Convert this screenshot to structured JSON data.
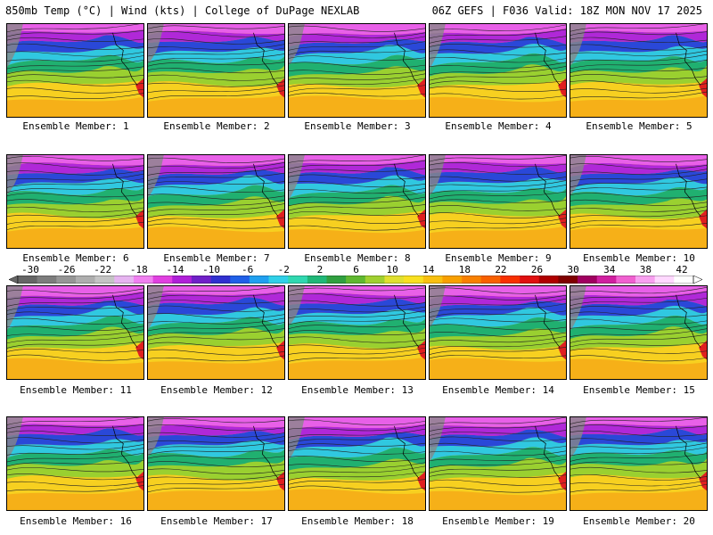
{
  "header": {
    "left": "850mb Temp (°C) | Wind (kts) | College of DuPage NEXLAB",
    "right": "06Z GEFS | F036 Valid: 18Z MON NOV 17 2025"
  },
  "panels": [
    {
      "label": "Ensemble Member: 1"
    },
    {
      "label": "Ensemble Member: 2"
    },
    {
      "label": "Ensemble Member: 3"
    },
    {
      "label": "Ensemble Member: 4"
    },
    {
      "label": "Ensemble Member: 5"
    },
    {
      "label": "Ensemble Member: 6"
    },
    {
      "label": "Ensemble Member: 7"
    },
    {
      "label": "Ensemble Member: 8"
    },
    {
      "label": "Ensemble Member: 9"
    },
    {
      "label": "Ensemble Member: 10"
    },
    {
      "label": "Ensemble Member: 11"
    },
    {
      "label": "Ensemble Member: 12"
    },
    {
      "label": "Ensemble Member: 13"
    },
    {
      "label": "Ensemble Member: 14"
    },
    {
      "label": "Ensemble Member: 15"
    },
    {
      "label": "Ensemble Member: 16"
    },
    {
      "label": "Ensemble Member: 17"
    },
    {
      "label": "Ensemble Member: 18"
    },
    {
      "label": "Ensemble Member: 19"
    },
    {
      "label": "Ensemble Member: 20"
    }
  ],
  "colorbar": {
    "ticks": [
      "-30",
      "-26",
      "-22",
      "-18",
      "-14",
      "-10",
      "-6",
      "-2",
      "2",
      "6",
      "10",
      "14",
      "18",
      "22",
      "26",
      "30",
      "34",
      "38",
      "42"
    ],
    "colors": [
      "#666666",
      "#7d7d7d",
      "#969696",
      "#aeaeae",
      "#c4c4c4",
      "#e6b4f0",
      "#f080f0",
      "#e040e0",
      "#b020d8",
      "#7020c8",
      "#3030d0",
      "#2060e8",
      "#20a0f0",
      "#30d0e8",
      "#30d8b0",
      "#20b878",
      "#30a040",
      "#60b830",
      "#a0d030",
      "#e0e030",
      "#f8e020",
      "#f8c010",
      "#f8a000",
      "#f88000",
      "#f86000",
      "#f83000",
      "#e01010",
      "#b00000",
      "#800000",
      "#a00060",
      "#d020a0",
      "#f060d0",
      "#f8a0f0",
      "#ffd8ff",
      "#ffffff"
    ]
  }
}
